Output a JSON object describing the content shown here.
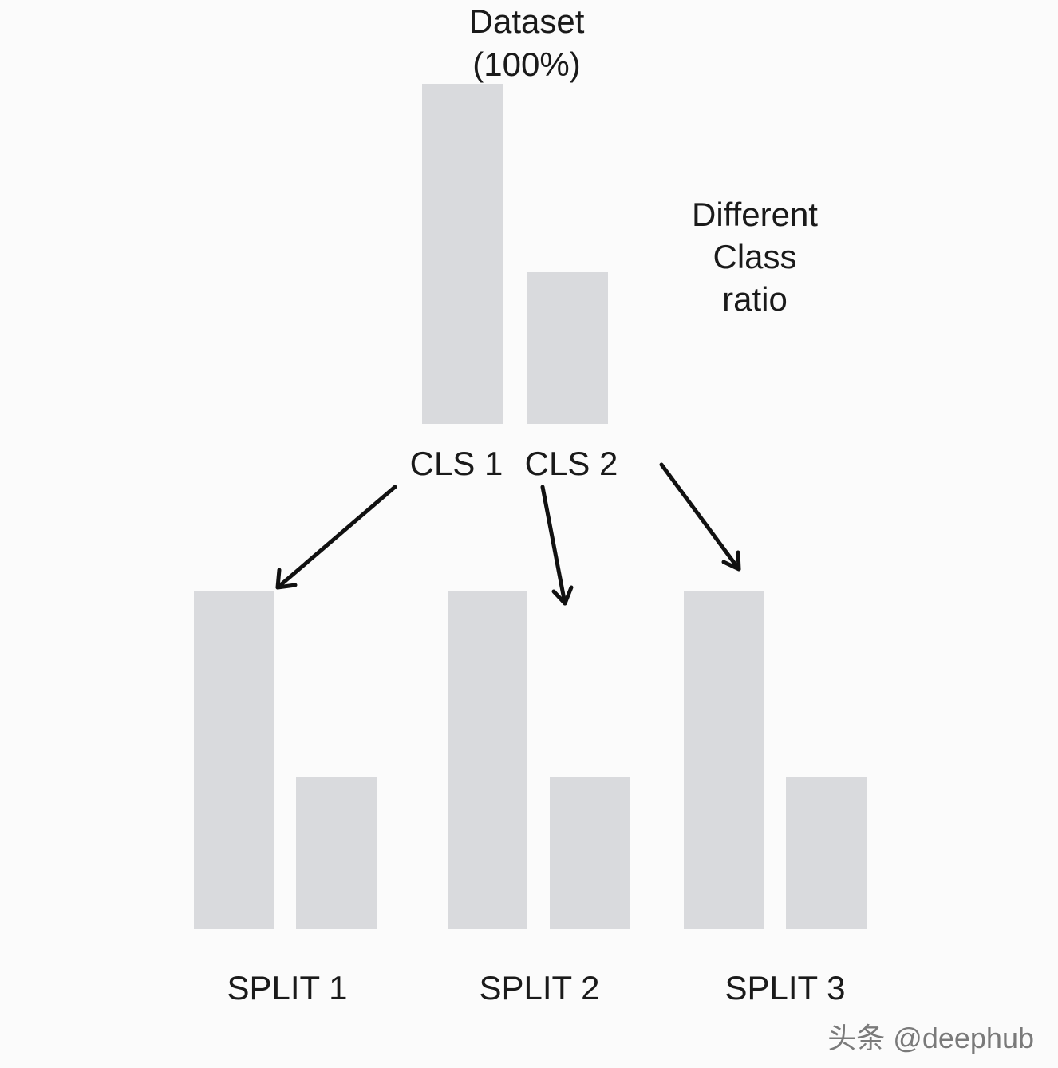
{
  "dataset": {
    "title_line1": "Dataset",
    "title_line2": "(100%)",
    "class_labels": [
      "CLS 1",
      "CLS 2"
    ]
  },
  "note": {
    "line1": "Different",
    "line2": "Class",
    "line3": "ratio"
  },
  "splits": [
    "SPLIT 1",
    "SPLIT 2",
    "SPLIT 3"
  ],
  "watermark": "头条 @deephub",
  "colors": {
    "bar": "#d9dadd",
    "arrow": "#111111",
    "background": "#fbfbfb"
  }
}
